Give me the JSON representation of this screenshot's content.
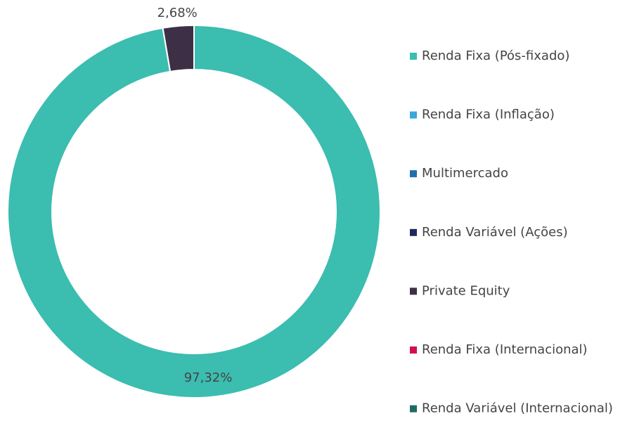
{
  "chart_data": {
    "type": "donut",
    "categories": [
      "Renda Fixa (Pós-fixado)",
      "Renda Fixa (Inflação)",
      "Multimercado",
      "Renda Variável (Ações)",
      "Private Equity",
      "Renda Fixa (Internacional)",
      "Renda Variável (Internacional)"
    ],
    "values": [
      97.32,
      0,
      0,
      0,
      2.68,
      0,
      0
    ],
    "value_labels": [
      "97,32%",
      null,
      null,
      null,
      "2,68%",
      null,
      null
    ],
    "colors": [
      "#3bbdb0",
      "#3aa6dc",
      "#1e6fae",
      "#1d2a5c",
      "#3d2f45",
      "#d0104c",
      "#1f6b62"
    ],
    "legend": "right"
  }
}
